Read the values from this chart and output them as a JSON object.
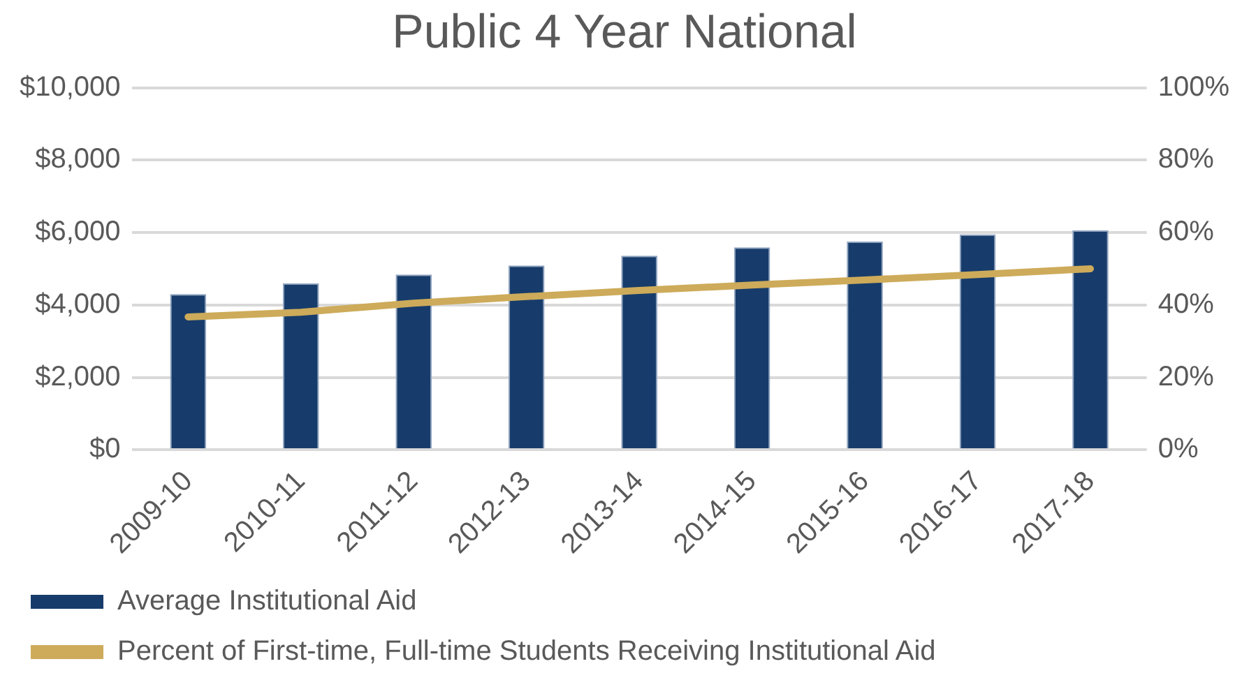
{
  "chart_data": {
    "type": "bar",
    "title": "Public 4 Year National",
    "categories": [
      "2009-10",
      "2010-11",
      "2011-12",
      "2012-13",
      "2013-14",
      "2014-15",
      "2015-16",
      "2016-17",
      "2017-18"
    ],
    "series": [
      {
        "name": "Average Institutional Aid",
        "color": "#173c6b",
        "values": [
          4300,
          4600,
          4840,
          5090,
          5360,
          5590,
          5750,
          5950,
          6060
        ]
      },
      {
        "name": "Percent of First-time, Full-time Students Receiving Institutional Aid",
        "type": "line",
        "axis": "y2",
        "color": "#cdab5a",
        "values": [
          36.7,
          38,
          40.5,
          42.3,
          44,
          45.5,
          46.9,
          48.4,
          50
        ]
      }
    ],
    "ylim": [
      0,
      10000
    ],
    "yticks": [
      {
        "value": 0,
        "label": "$0"
      },
      {
        "value": 2000,
        "label": "$2,000"
      },
      {
        "value": 4000,
        "label": "$4,000"
      },
      {
        "value": 6000,
        "label": "$6,000"
      },
      {
        "value": 8000,
        "label": "$8,000"
      },
      {
        "value": 10000,
        "label": "$10,000"
      }
    ],
    "y2lim": [
      0,
      100
    ],
    "y2ticks": [
      {
        "value": 0,
        "label": "0%"
      },
      {
        "value": 20,
        "label": "20%"
      },
      {
        "value": 40,
        "label": "40%"
      },
      {
        "value": 60,
        "label": "60%"
      },
      {
        "value": 80,
        "label": "80%"
      },
      {
        "value": 100,
        "label": "100%"
      }
    ],
    "grid": "y",
    "legend": "bottom",
    "marker": "none",
    "line_style": "solid"
  }
}
